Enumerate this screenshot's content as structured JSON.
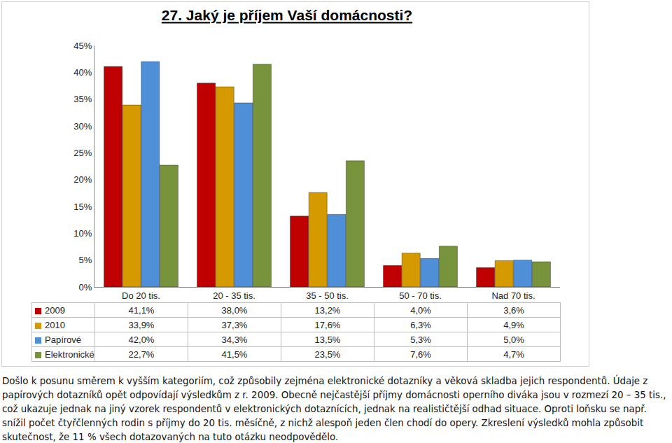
{
  "chart_data": {
    "type": "bar",
    "title": "27. Jaký je příjem Vaší domácnosti?",
    "categories": [
      "Do 20 tis.",
      "20 - 35 tis.",
      "35 - 50 tis.",
      "50 - 70 tis.",
      "Nad 70 tis."
    ],
    "series": [
      {
        "name": "2009",
        "color": "#c00000",
        "values": [
          41.1,
          38.0,
          13.2,
          4.0,
          3.6
        ],
        "value_labels": [
          "41,1%",
          "38,0%",
          "13,2%",
          "4,0%",
          "3,6%"
        ]
      },
      {
        "name": "2010",
        "color": "#d49a00",
        "values": [
          33.9,
          37.3,
          17.6,
          6.3,
          4.9
        ],
        "value_labels": [
          "33,9%",
          "37,3%",
          "17,6%",
          "6,3%",
          "4,9%"
        ]
      },
      {
        "name": "Papírové",
        "color": "#4f8fd8",
        "values": [
          42.0,
          34.3,
          13.5,
          5.3,
          5.0
        ],
        "value_labels": [
          "42,0%",
          "34,3%",
          "13,5%",
          "5,3%",
          "5,0%"
        ]
      },
      {
        "name": "Elektronické",
        "color": "#77933c",
        "values": [
          22.7,
          41.5,
          23.5,
          7.6,
          4.7
        ],
        "value_labels": [
          "22,7%",
          "41,5%",
          "23,5%",
          "7,6%",
          "4,7%"
        ]
      }
    ],
    "ylim": [
      0,
      45
    ],
    "yticks": [
      {
        "value": 0,
        "label": "0%"
      },
      {
        "value": 5,
        "label": "5%"
      },
      {
        "value": 10,
        "label": "10%"
      },
      {
        "value": 15,
        "label": "15%"
      },
      {
        "value": 20,
        "label": "20%"
      },
      {
        "value": 25,
        "label": "25%"
      },
      {
        "value": 30,
        "label": "30%"
      },
      {
        "value": 35,
        "label": "35%"
      },
      {
        "value": 40,
        "label": "40%"
      },
      {
        "value": 45,
        "label": "45%"
      }
    ],
    "grid": false,
    "annotations": [
      "Došlo k posunu směrem k vyšším kategoriím, což způsobily zejména elektronické dotazníky a věková skladba jejich respondentů. Údaje z papírových dotazníků opět odpovídají výsledkům z r. 2009. Obecně nejčastější příjmy domácnosti operního diváka jsou v rozmezí 20 – 35 tis., což ukazuje jednak na jiný vzorek respondentů v elektronických dotaznících, jednak na realističtější odhad situace. Oproti loňsku se např. snížil počet čtyřčlenných rodin s příjmy do 20 tis. měsíčně, z nichž alespoň jeden člen chodí do opery.  Zkreslení výsledků mohla způsobit skutečnost, že 11 % všech dotazovaných na tuto otázku neodpovědělo."
    ]
  }
}
